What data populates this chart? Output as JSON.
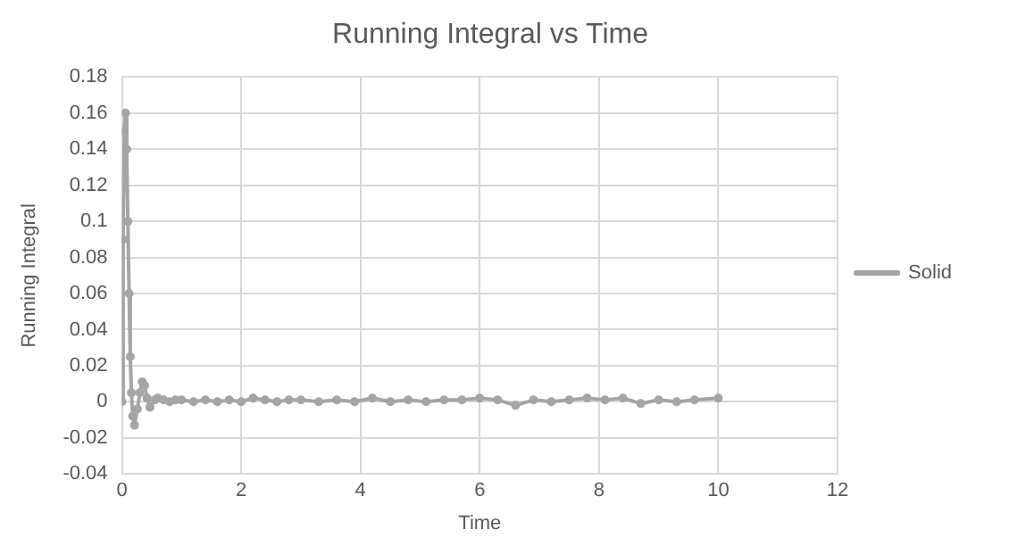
{
  "chart_data": {
    "type": "line",
    "title": "Running Integral vs Time",
    "xlabel": "Time",
    "ylabel": "Running Integral",
    "x": [
      0,
      0.02,
      0.04,
      0.06,
      0.08,
      0.1,
      0.12,
      0.14,
      0.16,
      0.18,
      0.21,
      0.26,
      0.3,
      0.34,
      0.38,
      0.42,
      0.47,
      0.55,
      0.6,
      0.7,
      0.8,
      0.9,
      1.0,
      1.2,
      1.4,
      1.6,
      1.8,
      2.0,
      2.2,
      2.4,
      2.6,
      2.8,
      3.0,
      3.3,
      3.6,
      3.9,
      4.2,
      4.5,
      4.8,
      5.1,
      5.4,
      5.7,
      6.0,
      6.3,
      6.6,
      6.9,
      7.2,
      7.5,
      7.8,
      8.1,
      8.4,
      8.7,
      9.0,
      9.3,
      9.6,
      10.0
    ],
    "series": [
      {
        "name": "Solid",
        "color": "#a5a5a5",
        "values": [
          0,
          0.09,
          0.15,
          0.16,
          0.14,
          0.1,
          0.06,
          0.025,
          0.005,
          -0.008,
          -0.013,
          -0.004,
          0.005,
          0.011,
          0.009,
          0.002,
          -0.003,
          0.001,
          0.002,
          0.001,
          0,
          0.001,
          0.001,
          0,
          0.001,
          0,
          0.001,
          0,
          0.002,
          0.001,
          0,
          0.001,
          0.001,
          0,
          0.001,
          0,
          0.002,
          0,
          0.001,
          0,
          0.001,
          0.001,
          0.002,
          0.001,
          -0.002,
          0.001,
          0,
          0.001,
          0.002,
          0.001,
          0.002,
          -0.001,
          0.001,
          0,
          0.001,
          0.002
        ]
      }
    ],
    "xlim": [
      0,
      12
    ],
    "xticks": [
      0,
      2,
      4,
      6,
      8,
      10,
      12
    ],
    "ylim": [
      -0.04,
      0.18
    ],
    "yticks": [
      -0.04,
      -0.02,
      0,
      0.02,
      0.04,
      0.06,
      0.08,
      0.1,
      0.12,
      0.14,
      0.16,
      0.18
    ],
    "grid": true,
    "legend": "right",
    "marker": "circle",
    "line_style": "solid"
  }
}
